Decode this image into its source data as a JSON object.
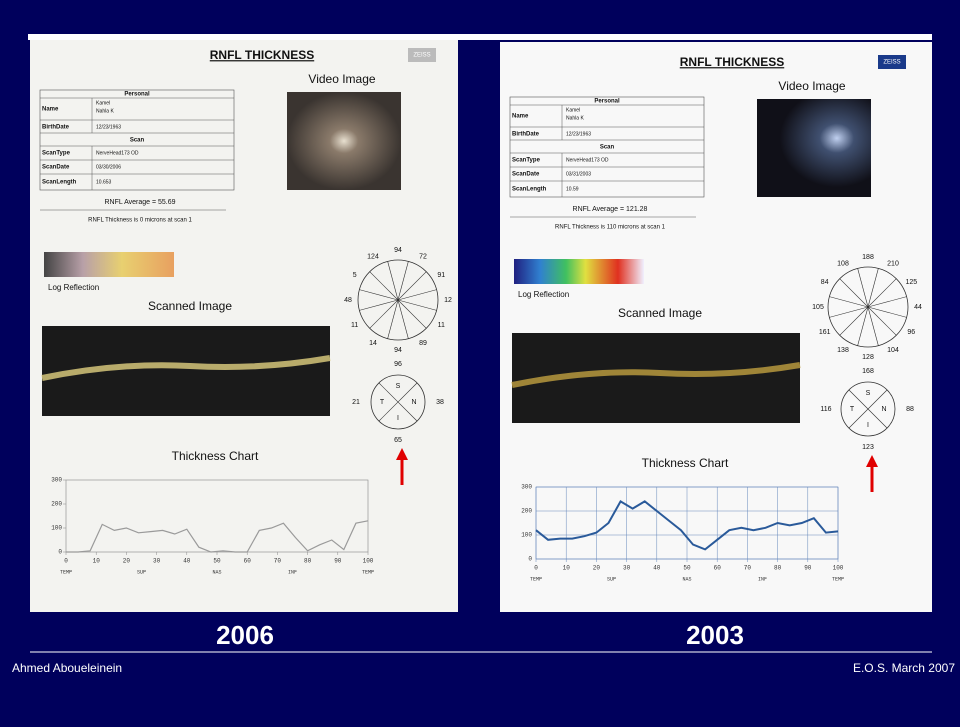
{
  "reports": [
    {
      "title": "RNFL THICKNESS",
      "logo": "ZEISS",
      "video_title": "Video Image",
      "personal_header": "Personal",
      "name_label": "Name",
      "name_lines": [
        "Kamel",
        "Nahla K"
      ],
      "birthdate_label": "BirthDate",
      "birthdate": "12/23/1963",
      "scan_header": "Scan",
      "scantype_label": "ScanType",
      "scantype": "NerveHead173  OD",
      "scandate_label": "ScanDate",
      "scandate": "03/30/2006",
      "scanlength_label": "ScanLength",
      "scanlength": "10.653",
      "average": "RNFL Average = 55.69",
      "thickness_at_scan": "RNFL Thickness is  0    microns at scan  1",
      "log_reflection": "Log Reflection",
      "scanned_image_title": "Scanned Image",
      "clock_values": [
        94,
        72,
        91,
        12,
        11,
        89,
        94,
        14,
        11,
        48,
        5,
        124
      ],
      "quadrants": {
        "labels": [
          "S",
          "N",
          "I",
          "T"
        ],
        "values": [
          96,
          38,
          65,
          21
        ]
      },
      "thickness_chart": {
        "title": "Thickness Chart",
        "color": "#9a9a9a",
        "grid": false,
        "xlim": [
          0,
          100
        ],
        "ylim": [
          0,
          300
        ],
        "xticks": [
          0,
          10,
          20,
          30,
          40,
          50,
          60,
          70,
          80,
          90,
          100
        ],
        "yticks": [
          0,
          100,
          200,
          300
        ],
        "sectors": [
          "TEMP",
          "SUP",
          "NAS",
          "INF",
          "TEMP"
        ],
        "x": [
          0,
          4,
          8,
          12,
          16,
          20,
          24,
          28,
          32,
          36,
          40,
          44,
          48,
          52,
          56,
          60,
          64,
          68,
          72,
          76,
          80,
          84,
          88,
          92,
          96,
          100
        ],
        "values": [
          0,
          0,
          5,
          115,
          90,
          100,
          80,
          85,
          90,
          75,
          95,
          20,
          0,
          5,
          0,
          0,
          90,
          100,
          120,
          60,
          5,
          30,
          50,
          10,
          120,
          130
        ]
      },
      "year": "2006"
    },
    {
      "title": "RNFL THICKNESS",
      "logo": "ZEISS",
      "video_title": "Video Image",
      "personal_header": "Personal",
      "name_label": "Name",
      "name_lines": [
        "Kamel",
        "Nahla K"
      ],
      "birthdate_label": "BirthDate",
      "birthdate": "12/23/1963",
      "scan_header": "Scan",
      "scantype_label": "ScanType",
      "scantype": "NerveHead173  OD",
      "scandate_label": "ScanDate",
      "scandate": "03/31/2003",
      "scanlength_label": "ScanLength",
      "scanlength": "10.59",
      "average": "RNFL Average = 121.28",
      "thickness_at_scan": "RNFL Thickness is  110 microns at scan  1",
      "log_reflection": "Log Reflection",
      "scanned_image_title": "Scanned Image",
      "clock_values": [
        188,
        210,
        125,
        44,
        96,
        104,
        128,
        138,
        161,
        105,
        84,
        108
      ],
      "quadrants": {
        "labels": [
          "S",
          "N",
          "I",
          "T"
        ],
        "values": [
          168,
          88,
          123,
          116
        ]
      },
      "thickness_chart": {
        "title": "Thickness Chart",
        "color": "#2a5a9a",
        "grid": true,
        "xlim": [
          0,
          100
        ],
        "ylim": [
          0,
          300
        ],
        "xticks": [
          0,
          10,
          20,
          30,
          40,
          50,
          60,
          70,
          80,
          90,
          100
        ],
        "yticks": [
          0,
          100,
          200,
          300
        ],
        "sectors": [
          "TEMP",
          "SUP",
          "NAS",
          "INF",
          "TEMP"
        ],
        "x": [
          0,
          4,
          8,
          12,
          16,
          20,
          24,
          28,
          32,
          36,
          40,
          44,
          48,
          52,
          56,
          60,
          64,
          68,
          72,
          76,
          80,
          84,
          88,
          92,
          96,
          100
        ],
        "values": [
          120,
          80,
          85,
          85,
          95,
          110,
          150,
          240,
          210,
          240,
          200,
          160,
          120,
          60,
          40,
          80,
          120,
          130,
          120,
          130,
          150,
          140,
          150,
          170,
          110,
          115
        ]
      },
      "year": "2003"
    }
  ],
  "footer": {
    "left": "Ahmed Aboueleinein",
    "right": "E.O.S. March 2007"
  }
}
